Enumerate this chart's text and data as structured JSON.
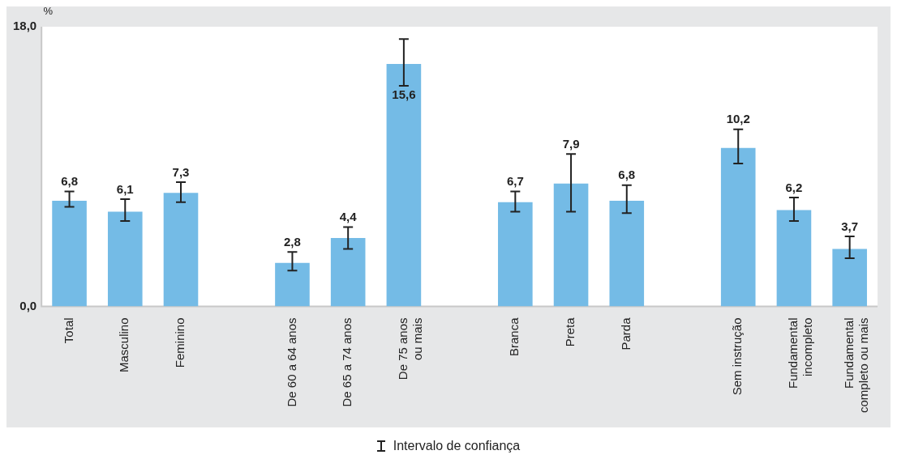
{
  "chart_data": {
    "type": "bar",
    "ylabel": "%",
    "categories": [
      "Total",
      "Masculino",
      "Feminino",
      null,
      "De 60 a 64 anos",
      "De 65 a 74 anos",
      "De 75 anos ou mais",
      null,
      "Branca",
      "Preta",
      "Parda",
      null,
      "Sem instrução",
      "Fundamental incompleto",
      "Fundamental completo ou mais"
    ],
    "values": [
      6.8,
      6.1,
      7.3,
      null,
      2.8,
      4.4,
      15.6,
      null,
      6.7,
      7.9,
      6.8,
      null,
      10.2,
      6.2,
      3.7
    ],
    "errors": [
      [
        6.4,
        7.4
      ],
      [
        5.5,
        6.9
      ],
      [
        6.7,
        8.0
      ],
      null,
      [
        2.3,
        3.5
      ],
      [
        3.7,
        5.1
      ],
      [
        14.2,
        17.2
      ],
      null,
      [
        6.1,
        7.4
      ],
      [
        6.1,
        9.8
      ],
      [
        6.0,
        7.8
      ],
      null,
      [
        9.2,
        11.4
      ],
      [
        5.5,
        7.0
      ],
      [
        3.1,
        4.5
      ]
    ],
    "color": "#74bbe6",
    "ylim": [
      0,
      18
    ],
    "yticks": [
      {
        "value": 0,
        "label": "0,0"
      },
      {
        "value": 18,
        "label": "18,0"
      }
    ],
    "value_labels": [
      "6,8",
      "6,1",
      "7,3",
      null,
      "2,8",
      "4,4",
      "15,6",
      null,
      "6,7",
      "7,9",
      "6,8",
      null,
      "10,2",
      "6,2",
      "3,7"
    ],
    "grid": false,
    "legend": false,
    "annotations": [
      "Intervalo de confiança"
    ]
  }
}
